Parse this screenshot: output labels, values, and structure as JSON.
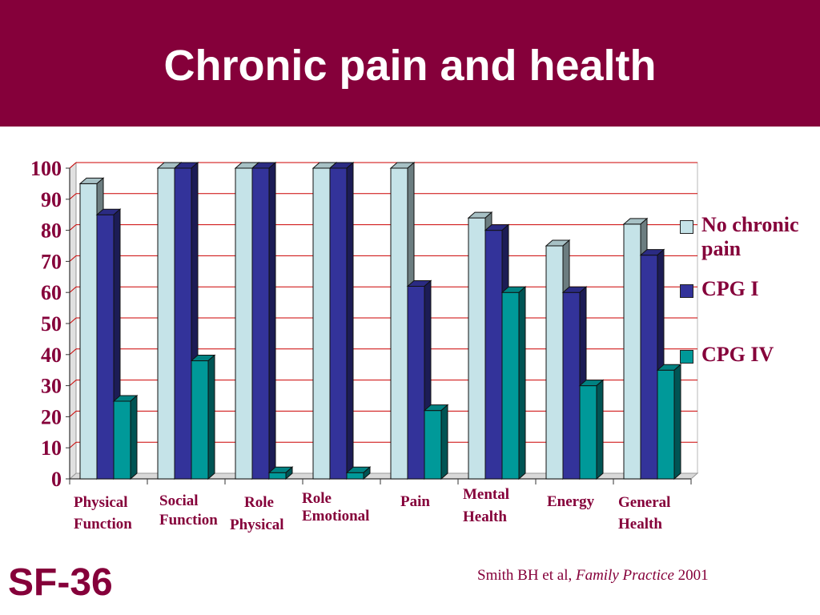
{
  "slide": {
    "title": "Chronic pain and health",
    "footer_label": "SF-36",
    "citation": {
      "authors": "Smith BH et al,",
      "journal": "Family Practice",
      "year": "2001"
    }
  },
  "colors": {
    "header_bg": "#85003a",
    "label_text": "#85003a",
    "gridline": "#cc0000",
    "no_chronic_pain": "#c5e3e8",
    "cpg1": "#33339a",
    "cpg4": "#009999"
  },
  "chart_data": {
    "type": "bar",
    "style": "3d-clustered",
    "title": "",
    "xlabel": "",
    "ylabel": "",
    "ylim": [
      0,
      100
    ],
    "yticks": [
      "0",
      "10",
      "20",
      "30",
      "40",
      "50",
      "60",
      "70",
      "80",
      "90",
      "100"
    ],
    "grid": true,
    "legend_position": "right",
    "categories": [
      [
        "Physical",
        "Function"
      ],
      [
        "Social",
        "Function"
      ],
      [
        "Role",
        "Physical"
      ],
      [
        "Role",
        "Emotional"
      ],
      [
        "Pain"
      ],
      [
        "Mental",
        "Health"
      ],
      [
        "Energy"
      ],
      [
        "General",
        "Health"
      ]
    ],
    "series": [
      {
        "name": "No chronic pain",
        "values": [
          95,
          100,
          100,
          100,
          100,
          84,
          75,
          82
        ]
      },
      {
        "name": "CPG I",
        "values": [
          85,
          100,
          100,
          100,
          62,
          80,
          60,
          72
        ]
      },
      {
        "name": "CPG IV",
        "values": [
          25,
          38,
          2,
          2,
          22,
          60,
          30,
          35
        ]
      }
    ]
  }
}
